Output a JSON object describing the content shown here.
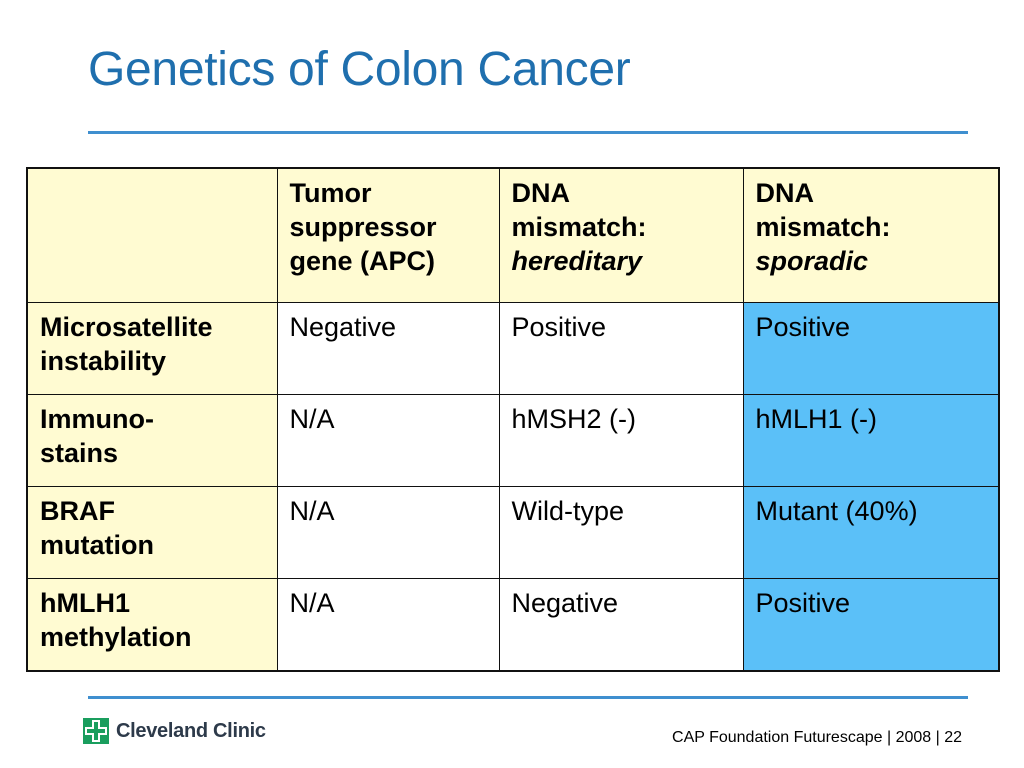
{
  "slide": {
    "title": "Genetics of Colon Cancer",
    "footer": "CAP Foundation Futurescape | 2008 | 22"
  },
  "logo": {
    "text": "Cleveland Clinic",
    "icon": "cleveland-clinic-cross-icon",
    "color": "#1a9e5e"
  },
  "table": {
    "header": {
      "col1": [
        "Tumor",
        "suppressor",
        "gene (APC)"
      ],
      "col2": {
        "lines": [
          "DNA",
          "mismatch:"
        ],
        "emphasis": "hereditary"
      },
      "col3": {
        "lines": [
          "DNA",
          "mismatch:"
        ],
        "emphasis": "sporadic"
      }
    },
    "rows": [
      {
        "label": [
          "Microsatellite",
          "instability"
        ],
        "values": [
          "Negative",
          "Positive",
          "Positive"
        ]
      },
      {
        "label": [
          "Immuno-",
          "stains"
        ],
        "values": [
          "N/A",
          "hMSH2 (-)",
          "hMLH1 (-)"
        ]
      },
      {
        "label": [
          "BRAF",
          "mutation"
        ],
        "values": [
          "N/A",
          "Wild-type",
          "Mutant (40%)"
        ]
      },
      {
        "label": [
          "hMLH1",
          "methylation"
        ],
        "values": [
          "N/A",
          "Negative",
          "Positive"
        ]
      }
    ]
  },
  "colors": {
    "title": "#1f6fae",
    "rule": "#3f8fcf",
    "header_bg": "#fffbd2",
    "highlight": "#5bc0f8"
  }
}
